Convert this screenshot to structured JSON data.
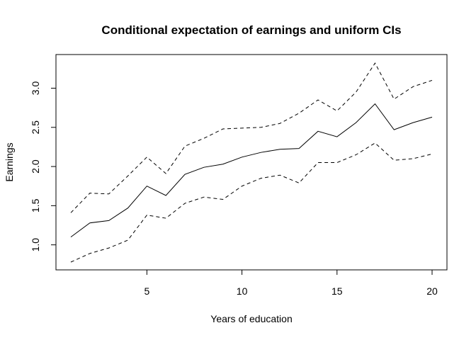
{
  "chart_data": {
    "type": "line",
    "title": "Conditional expectation of earnings and uniform CIs",
    "xlabel": "Years of education",
    "ylabel": "Earnings",
    "xlim": [
      1,
      20
    ],
    "ylim": [
      0.78,
      3.33
    ],
    "x_ticks": [
      5,
      10,
      15,
      20
    ],
    "y_ticks": [
      1.0,
      1.5,
      2.0,
      2.5,
      3.0
    ],
    "x_tick_labels": [
      "5",
      "10",
      "15",
      "20"
    ],
    "y_tick_labels": [
      "1.0",
      "1.5",
      "2.0",
      "2.5",
      "3.0"
    ],
    "grid": false,
    "legend": "none",
    "x": [
      1,
      2,
      3,
      4,
      5,
      6,
      7,
      8,
      9,
      10,
      11,
      12,
      13,
      14,
      15,
      16,
      17,
      18,
      19,
      20
    ],
    "series": [
      {
        "style": "solid",
        "values": [
          1.1,
          1.28,
          1.31,
          1.47,
          1.75,
          1.63,
          1.9,
          1.99,
          2.03,
          2.12,
          2.18,
          2.22,
          2.23,
          2.45,
          2.38,
          2.56,
          2.8,
          2.47,
          2.56,
          2.63
        ]
      },
      {
        "style": "dashed",
        "values": [
          1.41,
          1.66,
          1.65,
          1.88,
          2.12,
          1.91,
          2.26,
          2.36,
          2.48,
          2.49,
          2.5,
          2.55,
          2.68,
          2.85,
          2.71,
          2.95,
          3.32,
          2.86,
          3.02,
          3.1
        ]
      },
      {
        "style": "dashed",
        "values": [
          0.78,
          0.89,
          0.96,
          1.06,
          1.38,
          1.34,
          1.53,
          1.61,
          1.58,
          1.75,
          1.85,
          1.89,
          1.79,
          2.05,
          2.05,
          2.15,
          2.3,
          2.08,
          2.1,
          2.16
        ]
      }
    ],
    "colors": {
      "line": "#000000",
      "axis": "#000000",
      "background": "#ffffff"
    }
  }
}
